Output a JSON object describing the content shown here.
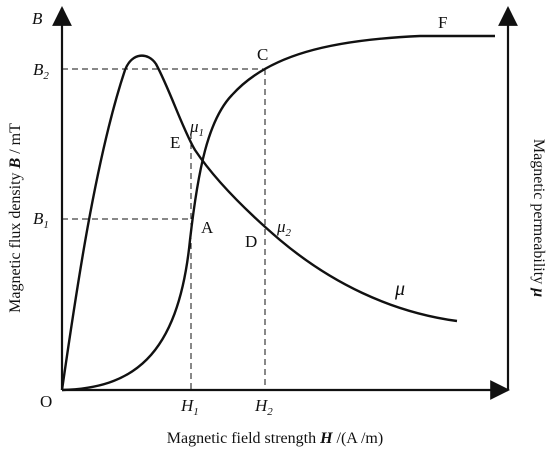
{
  "axes": {
    "x_label_prefix": "Magnetic field strength ",
    "x_label_symbol": "H",
    "x_label_unit": " /(A /m)",
    "y_left_label_prefix": "Magnetic flux density ",
    "y_left_label_symbol": "B",
    "y_left_label_unit": " / mT",
    "y_left_axis_symbol": "B",
    "y_right_label_prefix": "Magnetic permeability ",
    "y_right_label_symbol": "μ",
    "origin": "O"
  },
  "ticks": {
    "h1": {
      "base": "H",
      "sub": "1"
    },
    "h2": {
      "base": "H",
      "sub": "2"
    },
    "b1": {
      "base": "B",
      "sub": "1"
    },
    "b2": {
      "base": "B",
      "sub": "2"
    }
  },
  "points": {
    "a": "A",
    "c": "C",
    "d": "D",
    "e": "E",
    "f": "F",
    "mu1": {
      "base": "μ",
      "sub": "1"
    },
    "mu2": {
      "base": "μ",
      "sub": "2"
    }
  },
  "curves": {
    "mu_label": "μ"
  },
  "colors": {
    "ink": "#111111",
    "background": "#ffffff"
  }
}
